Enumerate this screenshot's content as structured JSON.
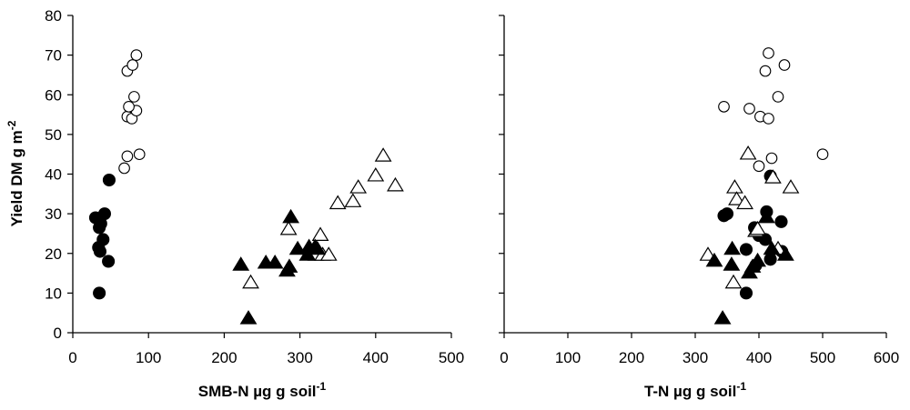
{
  "chart_data": [
    {
      "type": "scatter",
      "title": "",
      "xlabel": "SMB-N µg g soil",
      "xlabel_sup": "-1",
      "ylabel": "Yield DM g  m",
      "ylabel_sup": "-2",
      "xlim": [
        0,
        500
      ],
      "ylim": [
        0,
        80
      ],
      "xticks": [
        "0",
        "100",
        "200",
        "300",
        "400",
        "500"
      ],
      "yticks": [
        "0",
        "10",
        "20",
        "30",
        "40",
        "50",
        "60",
        "70",
        "80"
      ],
      "grid": false,
      "legend": "none",
      "series": [
        {
          "marker": "circle-open",
          "points": [
            [
              68,
              41.5
            ],
            [
              72,
              44.5
            ],
            [
              88,
              45
            ],
            [
              72,
              54.5
            ],
            [
              78,
              54
            ],
            [
              84,
              56
            ],
            [
              74,
              57
            ],
            [
              81,
              59.5
            ],
            [
              72,
              66
            ],
            [
              79,
              67.5
            ],
            [
              84,
              70
            ]
          ]
        },
        {
          "marker": "circle-filled",
          "points": [
            [
              30,
              29
            ],
            [
              42,
              30
            ],
            [
              35,
              26.5
            ],
            [
              37,
              27.5
            ],
            [
              40,
              23.5
            ],
            [
              34,
              21.5
            ],
            [
              36,
              20.5
            ],
            [
              47,
              18
            ],
            [
              48,
              38.5
            ],
            [
              35,
              10
            ]
          ]
        },
        {
          "marker": "triangle-open",
          "points": [
            [
              235,
              12.5
            ],
            [
              285,
              26
            ],
            [
              321,
              19.5
            ],
            [
              330,
              19.5
            ],
            [
              338,
              19.5
            ],
            [
              327,
              24.5
            ],
            [
              350,
              32.5
            ],
            [
              370,
              33
            ],
            [
              377,
              36.5
            ],
            [
              400,
              39.5
            ],
            [
              410,
              44.5
            ],
            [
              426,
              37
            ]
          ]
        },
        {
          "marker": "triangle-filled",
          "points": [
            [
              232,
              3.5
            ],
            [
              222,
              17
            ],
            [
              255,
              17.5
            ],
            [
              267,
              17.5
            ],
            [
              283,
              15.5
            ],
            [
              286,
              16.5
            ],
            [
              288,
              29
            ],
            [
              297,
              21
            ],
            [
              310,
              19.5
            ],
            [
              312,
              21.5
            ],
            [
              320,
              21.5
            ],
            [
              323,
              21
            ]
          ]
        }
      ]
    },
    {
      "type": "scatter",
      "title": "",
      "xlabel": "T-N µg g soil",
      "xlabel_sup": "-1",
      "ylabel": "",
      "xlim": [
        0,
        600
      ],
      "ylim": [
        0,
        80
      ],
      "xticks": [
        "0",
        "100",
        "200",
        "300",
        "400",
        "500",
        "600"
      ],
      "yticks": [],
      "grid": false,
      "legend": "none",
      "series": [
        {
          "marker": "circle-open",
          "points": [
            [
              345,
              57
            ],
            [
              385,
              56.5
            ],
            [
              402,
              54.5
            ],
            [
              415,
              54
            ],
            [
              400,
              42
            ],
            [
              420,
              44
            ],
            [
              410,
              66
            ],
            [
              415,
              70.5
            ],
            [
              430,
              59.5
            ],
            [
              440,
              67.5
            ],
            [
              500,
              45
            ]
          ]
        },
        {
          "marker": "circle-filled",
          "points": [
            [
              345,
              29.5
            ],
            [
              350,
              30
            ],
            [
              380,
              21
            ],
            [
              380,
              10
            ],
            [
              393,
              26.5
            ],
            [
              395,
              17
            ],
            [
              400,
              24.5
            ],
            [
              410,
              23.5
            ],
            [
              412,
              30.5
            ],
            [
              418,
              18.5
            ],
            [
              418,
              39.5
            ],
            [
              435,
              28
            ],
            [
              436,
              20.5
            ]
          ]
        },
        {
          "marker": "triangle-open",
          "points": [
            [
              320,
              19.5
            ],
            [
              360,
              12.5
            ],
            [
              362,
              36.5
            ],
            [
              365,
              33.5
            ],
            [
              378,
              32.5
            ],
            [
              383,
              45
            ],
            [
              395,
              25.5
            ],
            [
              398,
              26
            ],
            [
              422,
              39
            ],
            [
              430,
              21
            ],
            [
              450,
              36.5
            ]
          ]
        },
        {
          "marker": "triangle-filled",
          "points": [
            [
              343,
              3.5
            ],
            [
              330,
              18
            ],
            [
              358,
              21
            ],
            [
              357,
              17
            ],
            [
              385,
              15
            ],
            [
              390,
              16.5
            ],
            [
              398,
              18
            ],
            [
              412,
              29
            ],
            [
              420,
              21
            ],
            [
              442,
              19.5
            ]
          ]
        }
      ]
    }
  ]
}
